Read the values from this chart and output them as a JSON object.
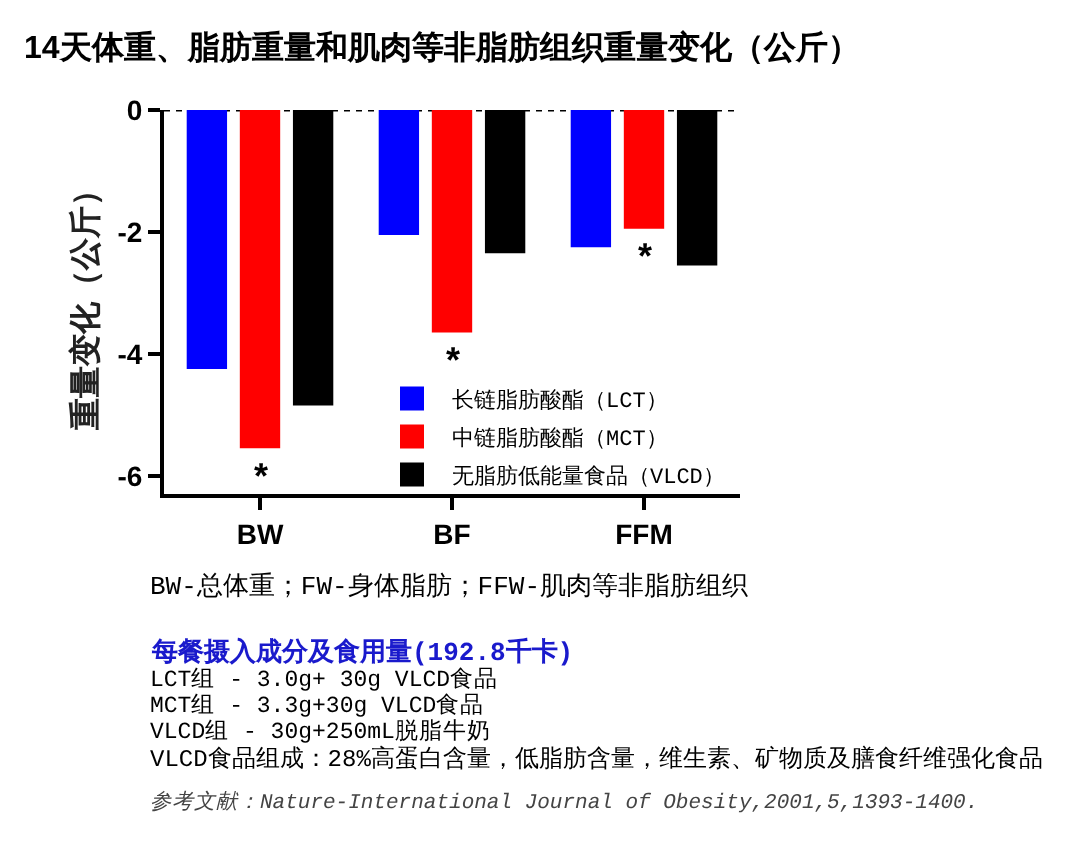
{
  "chart_data": {
    "type": "bar",
    "title": "14天体重、脂肪重量和肌肉等非脂肪组织重量变化（公斤）",
    "ylabel": "重量变化（公斤）",
    "categories": [
      "BW",
      "BF",
      "FFM"
    ],
    "series": [
      {
        "name": "长链脂肪酸酯（LCT）",
        "color": "#0000ff",
        "values": [
          -4.25,
          -2.05,
          -2.25
        ]
      },
      {
        "name": "中链脂肪酸酯（MCT）",
        "color": "#ff0000",
        "values": [
          -5.55,
          -3.65,
          -1.95
        ]
      },
      {
        "name": "无脂肪低能量食品（VLCD）",
        "color": "#000000",
        "values": [
          -4.85,
          -2.35,
          -2.55
        ]
      }
    ],
    "ylim": [
      -6.3,
      0
    ],
    "yticks": [
      -6,
      -4,
      -2,
      0
    ],
    "legend": "bottom right",
    "ref_lines": [
      {
        "axis": "y",
        "value": 0,
        "line_style": "dotted",
        "color": "#000000"
      }
    ],
    "annotations": [
      {
        "text": "*",
        "x": "BW",
        "y": -5.55
      },
      {
        "text": "*",
        "x": "BF",
        "y": -3.65
      },
      {
        "text": "*",
        "x": "FFM",
        "y": -1.95
      },
      "BW-总体重；FW-身体脂肪；FFW-肌肉等非脂肪组织",
      "每餐摄入成分及食用量(192.8千卡)",
      "LCT组 - 3.0g+ 30g VLCD食品",
      "MCT组 - 3.3g+30g VLCD食品",
      "VLCD组 - 30g+250mL脱脂牛奶",
      "VLCD食品组成：28%高蛋白含量，低脂肪含量，维生素、矿物质及膳食纤维强化食品",
      "参考文献：Nature-International Journal of Obesity,2001,5,1393-1400."
    ]
  }
}
